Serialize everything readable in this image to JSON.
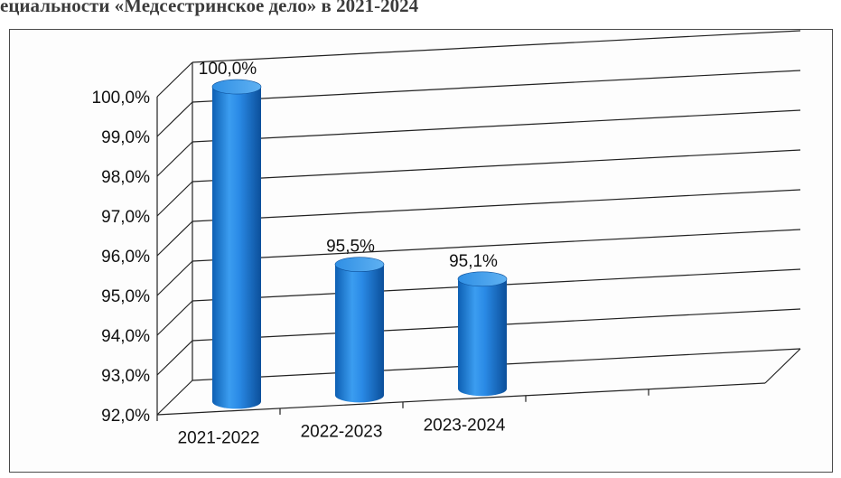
{
  "page": {
    "heading": "ециальности «Медсестринское дело» в 2021-2024"
  },
  "chart_data": {
    "type": "bar",
    "style": "3d-cylinder",
    "title": "",
    "xlabel": "",
    "ylabel": "",
    "categories": [
      "2021-2022",
      "2022-2023",
      "2023-2024"
    ],
    "values": [
      100.0,
      95.5,
      95.1
    ],
    "data_labels": [
      "100,0%",
      "95,5%",
      "95,1%"
    ],
    "ylim": [
      92.0,
      100.0
    ],
    "y_ticks": [
      "92,0%",
      "93,0%",
      "94,0%",
      "95,0%",
      "96,0%",
      "97,0%",
      "98,0%",
      "99,0%",
      "100,0%"
    ],
    "grid": true,
    "legend": "none",
    "colors": {
      "bar": "#1f7fd8",
      "bar_dark": "#0b4f9a",
      "bar_light": "#6fb8f2",
      "grid": "#222222"
    }
  }
}
